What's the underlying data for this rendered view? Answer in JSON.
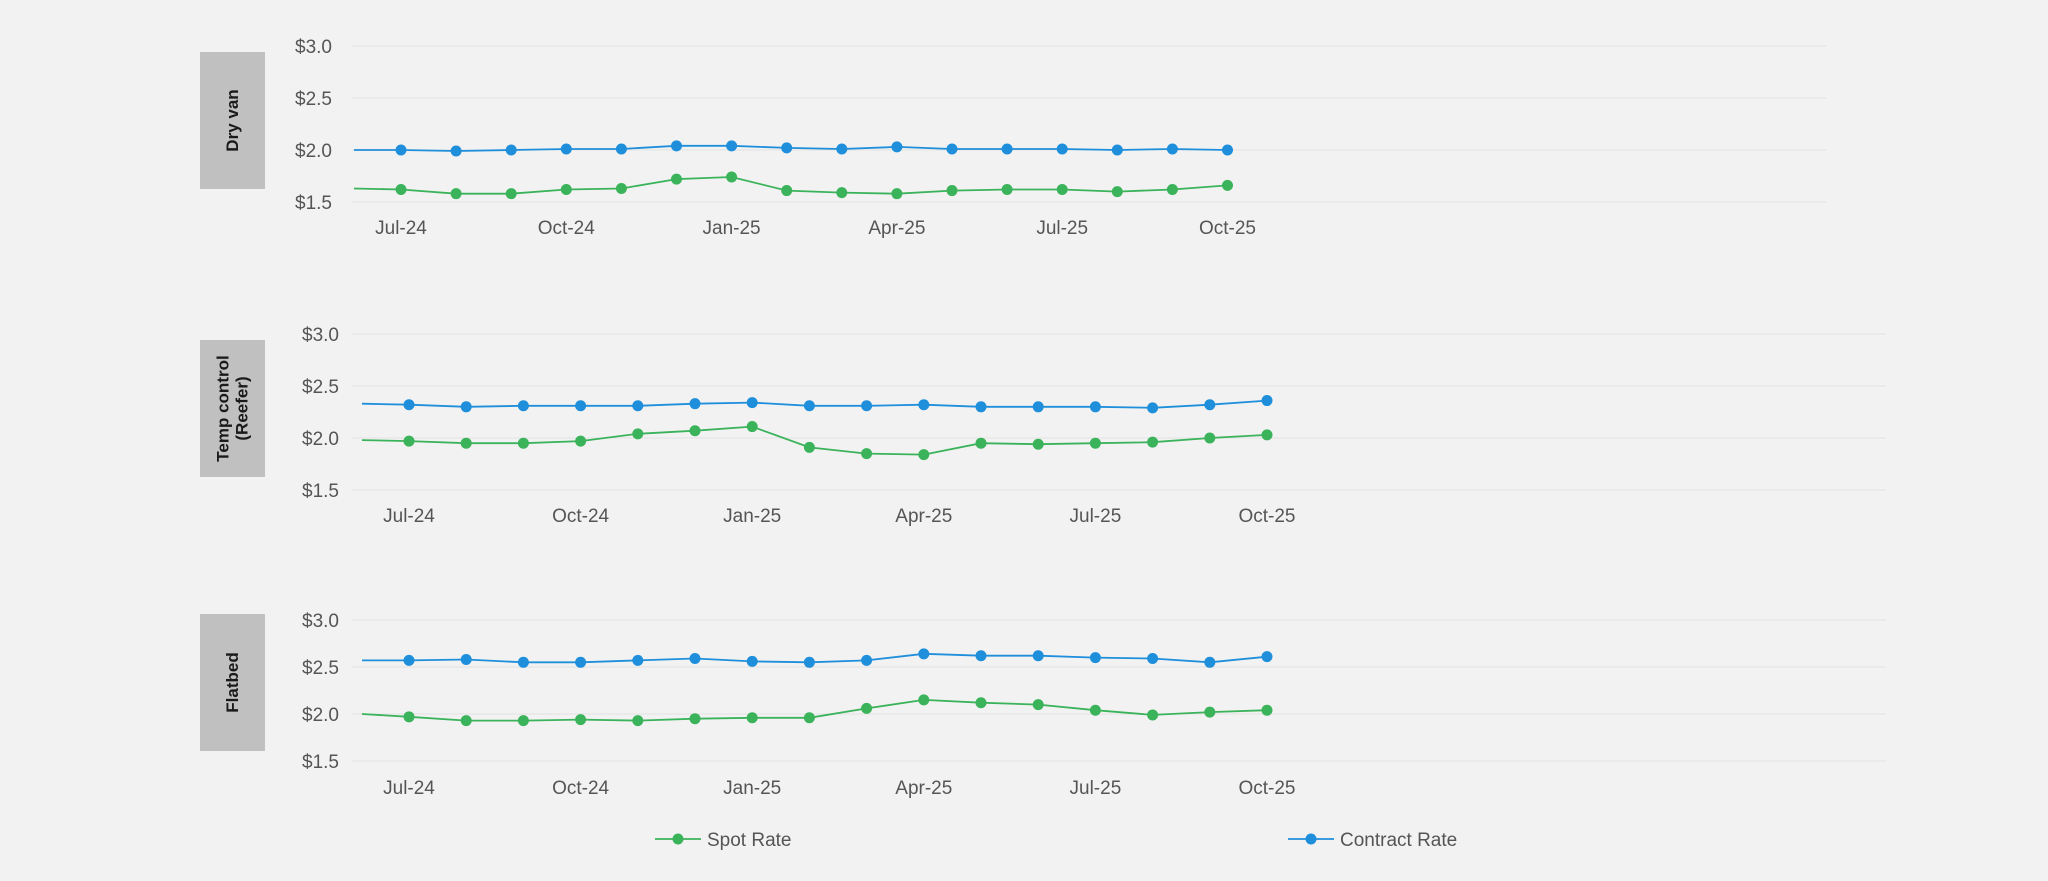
{
  "chart_data": [
    {
      "type": "line",
      "title": "Dry van",
      "ylim": [
        1.5,
        3.0
      ],
      "yticks": [
        1.5,
        2.0,
        2.5,
        3.0
      ],
      "ytick_labels": [
        "$1.5",
        "$2.0",
        "$2.5",
        "$3.0"
      ],
      "x": [
        "Jul-24",
        "Aug-24",
        "Sep-24",
        "Oct-24",
        "Nov-24",
        "Dec-24",
        "Jan-25",
        "Feb-25",
        "Mar-25",
        "Apr-25",
        "May-25",
        "Jun-25",
        "Jul-25",
        "Aug-25",
        "Sep-25",
        "Oct-25"
      ],
      "xtick_labels": [
        "Jul-24",
        "Oct-24",
        "Jan-25",
        "Apr-25",
        "Jul-25",
        "Oct-25"
      ],
      "series": [
        {
          "name": "Spot Rate",
          "color": "#3bb35b",
          "lead_in": 1.63,
          "values": [
            1.62,
            1.58,
            1.58,
            1.62,
            1.63,
            1.72,
            1.74,
            1.61,
            1.59,
            1.58,
            1.61,
            1.62,
            1.62,
            1.6,
            1.62,
            1.66
          ]
        },
        {
          "name": "Contract Rate",
          "color": "#1f8fdc",
          "lead_in": 2.0,
          "values": [
            2.0,
            1.99,
            2.0,
            2.01,
            2.01,
            2.04,
            2.04,
            2.02,
            2.01,
            2.03,
            2.01,
            2.01,
            2.01,
            2.0,
            2.01,
            2.0
          ]
        }
      ]
    },
    {
      "type": "line",
      "title": "Temp control (Reefer)",
      "title_lines": [
        "Temp control",
        "(Reefer)"
      ],
      "ylim": [
        1.5,
        3.0
      ],
      "yticks": [
        1.5,
        2.0,
        2.5,
        3.0
      ],
      "ytick_labels": [
        "$1.5",
        "$2.0",
        "$2.5",
        "$3.0"
      ],
      "x": [
        "Jul-24",
        "Aug-24",
        "Sep-24",
        "Oct-24",
        "Nov-24",
        "Dec-24",
        "Jan-25",
        "Feb-25",
        "Mar-25",
        "Apr-25",
        "May-25",
        "Jun-25",
        "Jul-25",
        "Aug-25",
        "Sep-25",
        "Oct-25"
      ],
      "xtick_labels": [
        "Jul-24",
        "Oct-24",
        "Jan-25",
        "Apr-25",
        "Jul-25",
        "Oct-25"
      ],
      "series": [
        {
          "name": "Spot Rate",
          "color": "#3bb35b",
          "lead_in": 1.98,
          "values": [
            1.97,
            1.95,
            1.95,
            1.97,
            2.04,
            2.07,
            2.11,
            1.91,
            1.85,
            1.84,
            1.95,
            1.94,
            1.95,
            1.96,
            2.0,
            2.03
          ]
        },
        {
          "name": "Contract Rate",
          "color": "#1f8fdc",
          "lead_in": 2.33,
          "values": [
            2.32,
            2.3,
            2.31,
            2.31,
            2.31,
            2.33,
            2.34,
            2.31,
            2.31,
            2.32,
            2.3,
            2.3,
            2.3,
            2.29,
            2.32,
            2.36
          ]
        }
      ]
    },
    {
      "type": "line",
      "title": "Flatbed",
      "ylim": [
        1.5,
        3.0
      ],
      "yticks": [
        1.5,
        2.0,
        2.5,
        3.0
      ],
      "ytick_labels": [
        "$1.5",
        "$2.0",
        "$2.5",
        "$3.0"
      ],
      "x": [
        "Jul-24",
        "Aug-24",
        "Sep-24",
        "Oct-24",
        "Nov-24",
        "Dec-24",
        "Jan-25",
        "Feb-25",
        "Mar-25",
        "Apr-25",
        "May-25",
        "Jun-25",
        "Jul-25",
        "Aug-25",
        "Sep-25",
        "Oct-25"
      ],
      "xtick_labels": [
        "Jul-24",
        "Oct-24",
        "Jan-25",
        "Apr-25",
        "Jul-25",
        "Oct-25"
      ],
      "series": [
        {
          "name": "Spot Rate",
          "color": "#3bb35b",
          "lead_in": 2.0,
          "values": [
            1.97,
            1.93,
            1.93,
            1.94,
            1.93,
            1.95,
            1.96,
            1.96,
            2.06,
            2.15,
            2.12,
            2.1,
            2.04,
            1.99,
            2.02,
            2.04
          ]
        },
        {
          "name": "Contract Rate",
          "color": "#1f8fdc",
          "lead_in": 2.57,
          "values": [
            2.57,
            2.58,
            2.55,
            2.55,
            2.57,
            2.59,
            2.56,
            2.55,
            2.57,
            2.64,
            2.62,
            2.62,
            2.6,
            2.59,
            2.55,
            2.61
          ]
        }
      ]
    }
  ],
  "legend": [
    {
      "name": "Spot Rate",
      "color": "#3bb35b"
    },
    {
      "name": "Contract Rate",
      "color": "#1f8fdc"
    }
  ],
  "colors": {
    "grid": "#e2e2e2",
    "panel_label_bg": "#c0c0c0",
    "background": "#f2f2f2"
  }
}
